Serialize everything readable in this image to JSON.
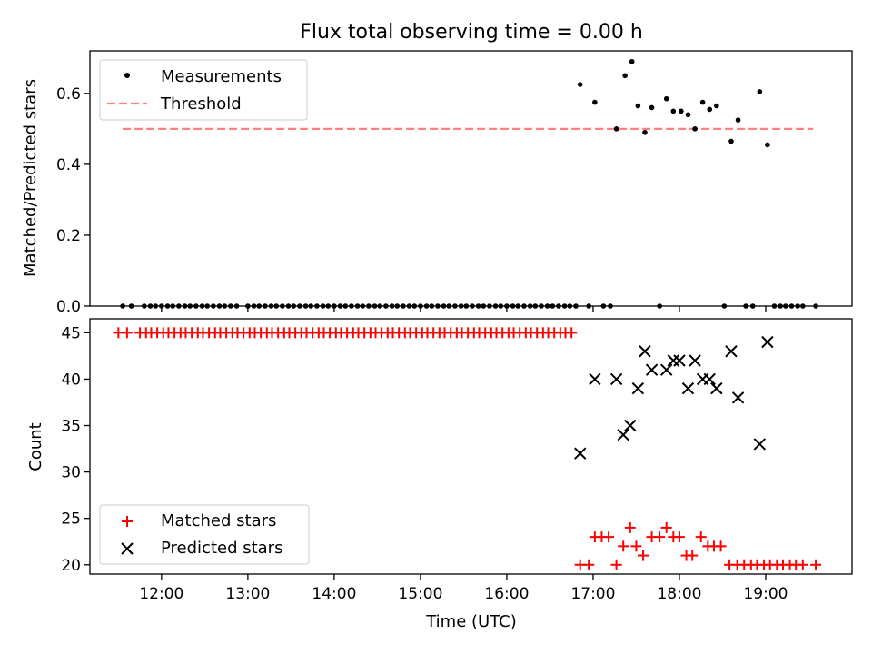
{
  "figure_title": "Flux total observing time = 0.00 h",
  "chart_data": [
    {
      "type": "scatter",
      "ylabel": "Matched/Predicted stars",
      "xlim": [
        11.17,
        20.0
      ],
      "ylim": [
        0.0,
        0.72
      ],
      "yticks": [
        0.0,
        0.2,
        0.4,
        0.6
      ],
      "ytick_labels": [
        "0.0",
        "0.2",
        "0.4",
        "0.6"
      ],
      "grid": false,
      "legend_position": "upper-left",
      "series": [
        {
          "name": "Measurements",
          "color": "#000000",
          "marker": "dot",
          "points": [
            [
              11.55,
              0
            ],
            [
              11.65,
              0
            ],
            [
              11.8,
              0
            ],
            [
              11.87,
              0
            ],
            [
              11.93,
              0
            ],
            [
              12.0,
              0
            ],
            [
              12.07,
              0
            ],
            [
              12.13,
              0
            ],
            [
              12.2,
              0
            ],
            [
              12.27,
              0
            ],
            [
              12.33,
              0
            ],
            [
              12.4,
              0
            ],
            [
              12.47,
              0
            ],
            [
              12.53,
              0
            ],
            [
              12.6,
              0
            ],
            [
              12.67,
              0
            ],
            [
              12.73,
              0
            ],
            [
              12.8,
              0
            ],
            [
              12.87,
              0
            ],
            [
              13.0,
              0
            ],
            [
              13.07,
              0
            ],
            [
              13.13,
              0
            ],
            [
              13.2,
              0
            ],
            [
              13.27,
              0
            ],
            [
              13.33,
              0
            ],
            [
              13.4,
              0
            ],
            [
              13.47,
              0
            ],
            [
              13.53,
              0
            ],
            [
              13.6,
              0
            ],
            [
              13.67,
              0
            ],
            [
              13.73,
              0
            ],
            [
              13.8,
              0
            ],
            [
              13.87,
              0
            ],
            [
              13.93,
              0
            ],
            [
              14.0,
              0
            ],
            [
              14.07,
              0
            ],
            [
              14.13,
              0
            ],
            [
              14.2,
              0
            ],
            [
              14.27,
              0
            ],
            [
              14.33,
              0
            ],
            [
              14.4,
              0
            ],
            [
              14.47,
              0
            ],
            [
              14.53,
              0
            ],
            [
              14.6,
              0
            ],
            [
              14.67,
              0
            ],
            [
              14.73,
              0
            ],
            [
              14.8,
              0
            ],
            [
              14.87,
              0
            ],
            [
              14.93,
              0
            ],
            [
              15.0,
              0
            ],
            [
              15.07,
              0
            ],
            [
              15.13,
              0
            ],
            [
              15.2,
              0
            ],
            [
              15.27,
              0
            ],
            [
              15.33,
              0
            ],
            [
              15.4,
              0
            ],
            [
              15.47,
              0
            ],
            [
              15.53,
              0
            ],
            [
              15.6,
              0
            ],
            [
              15.67,
              0
            ],
            [
              15.73,
              0
            ],
            [
              15.8,
              0
            ],
            [
              15.87,
              0
            ],
            [
              15.93,
              0
            ],
            [
              16.0,
              0
            ],
            [
              16.07,
              0
            ],
            [
              16.13,
              0
            ],
            [
              16.2,
              0
            ],
            [
              16.27,
              0
            ],
            [
              16.33,
              0
            ],
            [
              16.4,
              0
            ],
            [
              16.47,
              0
            ],
            [
              16.53,
              0
            ],
            [
              16.6,
              0
            ],
            [
              16.67,
              0
            ],
            [
              16.73,
              0
            ],
            [
              16.8,
              0
            ],
            [
              16.85,
              0.625
            ],
            [
              16.95,
              0
            ],
            [
              17.02,
              0.575
            ],
            [
              17.12,
              0
            ],
            [
              17.2,
              0
            ],
            [
              17.27,
              0.5
            ],
            [
              17.37,
              0.65
            ],
            [
              17.45,
              0.69
            ],
            [
              17.52,
              0.565
            ],
            [
              17.6,
              0.49
            ],
            [
              17.68,
              0.56
            ],
            [
              17.77,
              0
            ],
            [
              17.85,
              0.585
            ],
            [
              17.93,
              0.55
            ],
            [
              18.02,
              0.55
            ],
            [
              18.1,
              0.54
            ],
            [
              18.18,
              0.5
            ],
            [
              18.27,
              0.575
            ],
            [
              18.35,
              0.555
            ],
            [
              18.43,
              0.565
            ],
            [
              18.52,
              0
            ],
            [
              18.6,
              0.465
            ],
            [
              18.68,
              0.525
            ],
            [
              18.77,
              0
            ],
            [
              18.85,
              0
            ],
            [
              18.93,
              0.605
            ],
            [
              19.02,
              0.455
            ],
            [
              19.1,
              0
            ],
            [
              19.17,
              0
            ],
            [
              19.23,
              0
            ],
            [
              19.3,
              0
            ],
            [
              19.37,
              0
            ],
            [
              19.43,
              0
            ],
            [
              19.58,
              0
            ]
          ]
        },
        {
          "name": "Threshold",
          "color": "#ff8080",
          "style": "dashed",
          "x": [
            11.55,
            19.55
          ],
          "y": [
            0.5,
            0.5
          ]
        }
      ]
    },
    {
      "type": "scatter",
      "xlabel": "Time (UTC)",
      "ylabel": "Count",
      "xlim": [
        11.17,
        20.0
      ],
      "ylim": [
        19.0,
        46.5
      ],
      "xticks": [
        12,
        13,
        14,
        15,
        16,
        17,
        18,
        19
      ],
      "xtick_labels": [
        "12:00",
        "13:00",
        "14:00",
        "15:00",
        "16:00",
        "17:00",
        "18:00",
        "19:00"
      ],
      "yticks": [
        20,
        25,
        30,
        35,
        40,
        45
      ],
      "ytick_labels": [
        "20",
        "25",
        "30",
        "35",
        "40",
        "45"
      ],
      "grid": false,
      "legend_position": "lower-left",
      "series": [
        {
          "name": "Matched stars",
          "color": "#ff0000",
          "marker": "plus",
          "points": [
            [
              11.5,
              45
            ],
            [
              11.6,
              45
            ],
            [
              11.75,
              45
            ],
            [
              11.82,
              45
            ],
            [
              11.88,
              45
            ],
            [
              11.95,
              45
            ],
            [
              12.02,
              45
            ],
            [
              12.08,
              45
            ],
            [
              12.15,
              45
            ],
            [
              12.22,
              45
            ],
            [
              12.28,
              45
            ],
            [
              12.35,
              45
            ],
            [
              12.42,
              45
            ],
            [
              12.48,
              45
            ],
            [
              12.55,
              45
            ],
            [
              12.62,
              45
            ],
            [
              12.68,
              45
            ],
            [
              12.75,
              45
            ],
            [
              12.82,
              45
            ],
            [
              12.88,
              45
            ],
            [
              12.95,
              45
            ],
            [
              13.02,
              45
            ],
            [
              13.08,
              45
            ],
            [
              13.15,
              45
            ],
            [
              13.22,
              45
            ],
            [
              13.28,
              45
            ],
            [
              13.35,
              45
            ],
            [
              13.42,
              45
            ],
            [
              13.48,
              45
            ],
            [
              13.55,
              45
            ],
            [
              13.62,
              45
            ],
            [
              13.68,
              45
            ],
            [
              13.75,
              45
            ],
            [
              13.82,
              45
            ],
            [
              13.88,
              45
            ],
            [
              13.95,
              45
            ],
            [
              14.02,
              45
            ],
            [
              14.08,
              45
            ],
            [
              14.15,
              45
            ],
            [
              14.22,
              45
            ],
            [
              14.28,
              45
            ],
            [
              14.35,
              45
            ],
            [
              14.42,
              45
            ],
            [
              14.48,
              45
            ],
            [
              14.55,
              45
            ],
            [
              14.62,
              45
            ],
            [
              14.68,
              45
            ],
            [
              14.75,
              45
            ],
            [
              14.82,
              45
            ],
            [
              14.88,
              45
            ],
            [
              14.95,
              45
            ],
            [
              15.02,
              45
            ],
            [
              15.08,
              45
            ],
            [
              15.15,
              45
            ],
            [
              15.22,
              45
            ],
            [
              15.28,
              45
            ],
            [
              15.35,
              45
            ],
            [
              15.42,
              45
            ],
            [
              15.48,
              45
            ],
            [
              15.55,
              45
            ],
            [
              15.62,
              45
            ],
            [
              15.68,
              45
            ],
            [
              15.75,
              45
            ],
            [
              15.82,
              45
            ],
            [
              15.88,
              45
            ],
            [
              15.95,
              45
            ],
            [
              16.02,
              45
            ],
            [
              16.08,
              45
            ],
            [
              16.15,
              45
            ],
            [
              16.22,
              45
            ],
            [
              16.28,
              45
            ],
            [
              16.35,
              45
            ],
            [
              16.42,
              45
            ],
            [
              16.48,
              45
            ],
            [
              16.55,
              45
            ],
            [
              16.62,
              45
            ],
            [
              16.68,
              45
            ],
            [
              16.75,
              45
            ],
            [
              16.85,
              20
            ],
            [
              16.95,
              20
            ],
            [
              17.02,
              23
            ],
            [
              17.1,
              23
            ],
            [
              17.18,
              23
            ],
            [
              17.27,
              20
            ],
            [
              17.35,
              22
            ],
            [
              17.43,
              24
            ],
            [
              17.5,
              22
            ],
            [
              17.58,
              21
            ],
            [
              17.68,
              23
            ],
            [
              17.77,
              23
            ],
            [
              17.85,
              24
            ],
            [
              17.93,
              23
            ],
            [
              18.0,
              23
            ],
            [
              18.08,
              21
            ],
            [
              18.15,
              21
            ],
            [
              18.25,
              23
            ],
            [
              18.33,
              22
            ],
            [
              18.4,
              22
            ],
            [
              18.48,
              22
            ],
            [
              18.58,
              20
            ],
            [
              18.67,
              20
            ],
            [
              18.75,
              20
            ],
            [
              18.83,
              20
            ],
            [
              18.9,
              20
            ],
            [
              18.98,
              20
            ],
            [
              19.05,
              20
            ],
            [
              19.13,
              20
            ],
            [
              19.2,
              20
            ],
            [
              19.28,
              20
            ],
            [
              19.35,
              20
            ],
            [
              19.43,
              20
            ],
            [
              19.58,
              20
            ]
          ]
        },
        {
          "name": "Predicted stars",
          "color": "#000000",
          "marker": "x",
          "points": [
            [
              16.85,
              32
            ],
            [
              17.02,
              40
            ],
            [
              17.27,
              40
            ],
            [
              17.35,
              34
            ],
            [
              17.43,
              35
            ],
            [
              17.52,
              39
            ],
            [
              17.6,
              43
            ],
            [
              17.68,
              41
            ],
            [
              17.85,
              41
            ],
            [
              17.93,
              42
            ],
            [
              18.0,
              42
            ],
            [
              18.1,
              39
            ],
            [
              18.18,
              42
            ],
            [
              18.27,
              40
            ],
            [
              18.35,
              40
            ],
            [
              18.43,
              39
            ],
            [
              18.6,
              43
            ],
            [
              18.68,
              38
            ],
            [
              18.93,
              33
            ],
            [
              19.02,
              44
            ]
          ]
        }
      ]
    }
  ]
}
